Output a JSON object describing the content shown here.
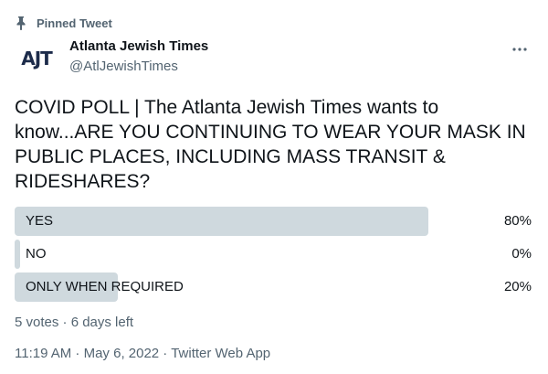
{
  "pinned": {
    "label": "Pinned Tweet",
    "icon": "pin-icon"
  },
  "author": {
    "name": "Atlanta Jewish Times",
    "handle": "@AtlJewishTimes",
    "avatar_text": "AJT"
  },
  "tweet": {
    "text": "COVID POLL | The Atlanta Jewish Times wants to know...ARE YOU CONTINUING TO WEAR YOUR MASK IN PUBLIC PLACES, INCLUDING MASS TRANSIT & RIDESHARES?"
  },
  "poll": {
    "options": [
      {
        "label": "YES",
        "percent_label": "80%",
        "percent": 80
      },
      {
        "label": "NO",
        "percent_label": "0%",
        "percent": 0
      },
      {
        "label": "ONLY WHEN REQUIRED",
        "percent_label": "20%",
        "percent": 20
      }
    ],
    "meta": "5 votes · 6 days left"
  },
  "timestamp": "11:19 AM · May 6, 2022 · Twitter Web App",
  "colors": {
    "bar": "#cfd9de",
    "secondary_text": "#536471",
    "text": "#0f1419",
    "avatar": "#1c2b4a"
  }
}
